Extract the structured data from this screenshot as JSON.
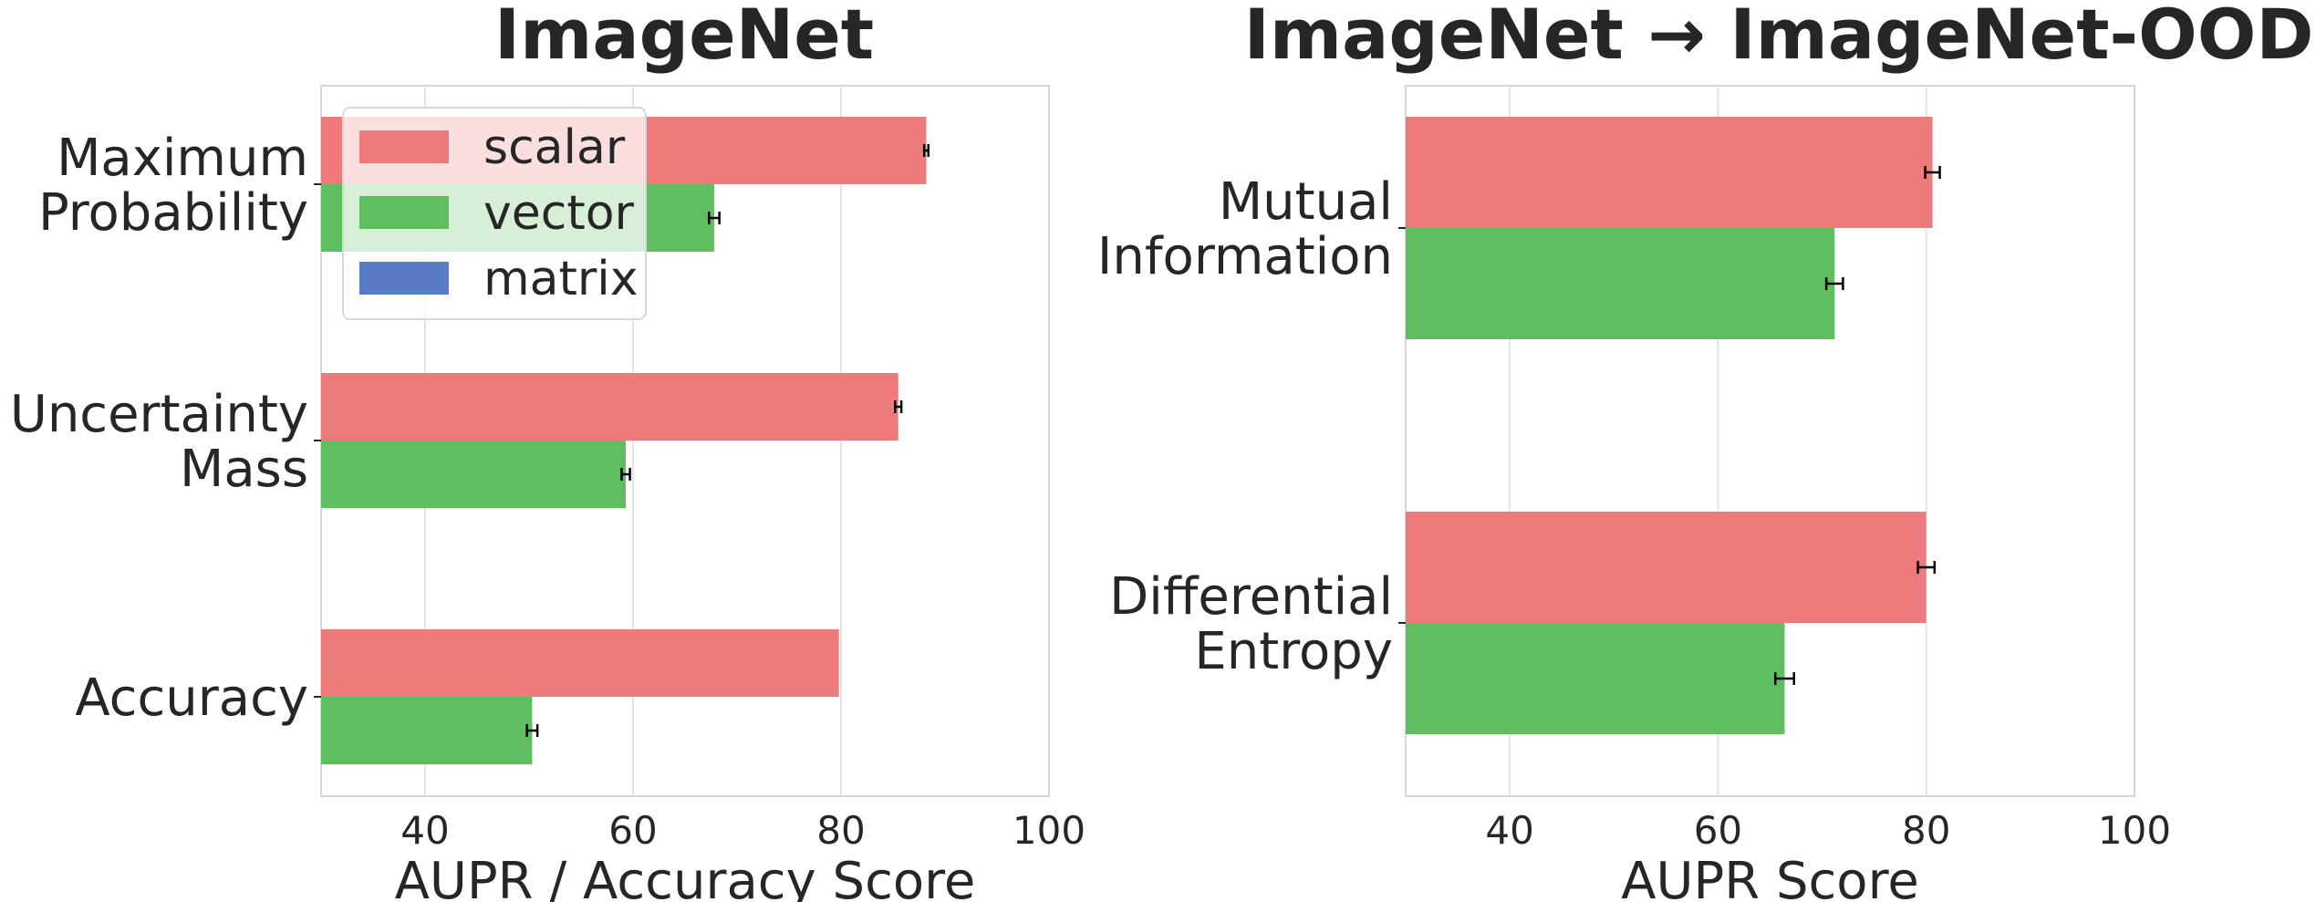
{
  "chart_data": [
    {
      "type": "bar",
      "orientation": "horizontal",
      "title": "ImageNet",
      "xlabel": "AUPR / Accuracy Score",
      "ylabel": "",
      "xlim": [
        30,
        100
      ],
      "xticks": [
        "40",
        "60",
        "80",
        "100"
      ],
      "grid": true,
      "legend": {
        "placement": "top-left",
        "entries": [
          "scalar",
          "vector",
          "matrix"
        ]
      },
      "categories": [
        "Maximum\nProbability",
        "Uncertainty\nMass",
        "Accuracy"
      ],
      "series": [
        {
          "name": "scalar",
          "color": "#ee7b7b",
          "values": [
            88.2,
            85.5,
            79.8
          ],
          "errors": [
            0.2,
            0.3,
            null
          ]
        },
        {
          "name": "vector",
          "color": "#5fbe5f",
          "values": [
            67.8,
            59.3,
            50.3
          ],
          "errors": [
            0.5,
            0.4,
            0.5
          ]
        },
        {
          "name": "matrix",
          "color": "#5a7bc5",
          "values": [
            null,
            null,
            null
          ],
          "errors": [
            null,
            null,
            null
          ]
        }
      ]
    },
    {
      "type": "bar",
      "orientation": "horizontal",
      "title": "ImageNet → ImageNet-OOD",
      "xlabel": "AUPR Score",
      "ylabel": "",
      "xlim": [
        30,
        100
      ],
      "xticks": [
        "40",
        "60",
        "80",
        "100"
      ],
      "grid": true,
      "categories": [
        "Mutual\nInformation",
        "Differential\nEntropy"
      ],
      "series": [
        {
          "name": "scalar",
          "color": "#ee7b7b",
          "values": [
            80.6,
            80.0
          ],
          "errors": [
            0.7,
            0.8
          ]
        },
        {
          "name": "vector",
          "color": "#5fbe5f",
          "values": [
            71.2,
            66.4
          ],
          "errors": [
            0.8,
            0.9
          ]
        },
        {
          "name": "matrix",
          "color": "#5a7bc5",
          "values": [
            null,
            null
          ],
          "errors": [
            null,
            null
          ]
        }
      ]
    }
  ]
}
